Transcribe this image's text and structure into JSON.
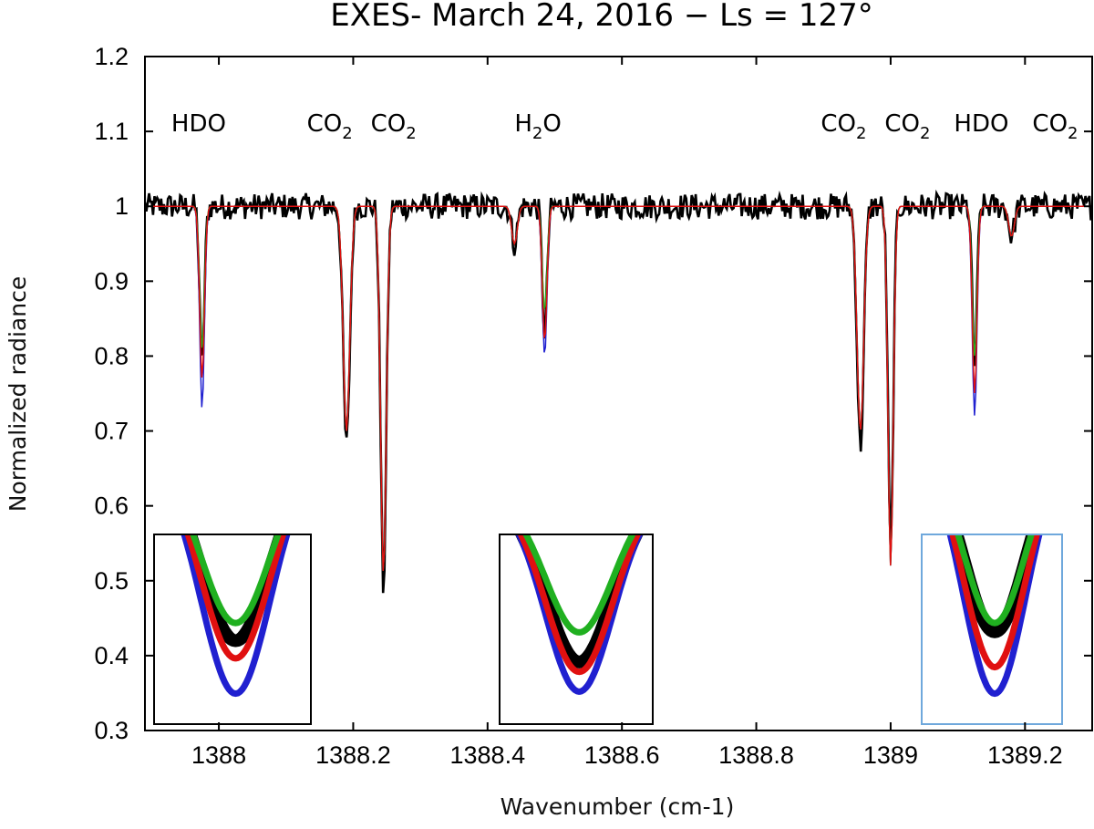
{
  "chart_data": {
    "type": "line",
    "title": "EXES- March 24, 2016 − Ls = 127°",
    "xlabel": "Wavenumber (cm-1)",
    "ylabel": "Normalized radiance",
    "xlim": [
      1387.89,
      1389.3
    ],
    "ylim": [
      0.3,
      1.2
    ],
    "xticks": [
      1388,
      1388.2,
      1388.4,
      1388.6,
      1388.8,
      1389,
      1389.2
    ],
    "xtick_labels": [
      "1388",
      "1388.2",
      "1388.4",
      "1388.6",
      "1388.8",
      "1389",
      "1389.2"
    ],
    "yticks": [
      0.3,
      0.4,
      0.5,
      0.6,
      0.7,
      0.8,
      0.9,
      1.0,
      1.1,
      1.2
    ],
    "ytick_labels": [
      "0.3",
      "0.4",
      "0.5",
      "0.6",
      "0.7",
      "0.8",
      "0.9",
      "1",
      "1.1",
      "1.2"
    ],
    "grid": false,
    "legend": "none",
    "baseline": 1.0,
    "annotations": [
      {
        "text": "HDO",
        "sub": "",
        "x": 1387.97
      },
      {
        "text": "CO",
        "sub": "2",
        "x": 1388.165
      },
      {
        "text": "CO",
        "sub": "2",
        "x": 1388.26
      },
      {
        "text": "H",
        "sub": "2",
        "tail": "O",
        "x": 1388.475
      },
      {
        "text": "CO",
        "sub": "2",
        "x": 1388.93
      },
      {
        "text": "CO",
        "sub": "2",
        "x": 1389.025
      },
      {
        "text": "HDO",
        "sub": "",
        "x": 1389.135
      },
      {
        "text": "CO",
        "sub": "2",
        "x": 1389.245
      }
    ],
    "absorption_lines": [
      {
        "x": 1387.975,
        "width": 0.005,
        "depth": {
          "observed": 0.21,
          "green": 0.19,
          "red": 0.23,
          "blue": 0.27
        }
      },
      {
        "x": 1388.19,
        "width": 0.007,
        "depth": {
          "observed": 0.32,
          "green": 0.3,
          "red": 0.3,
          "blue": 0.3
        }
      },
      {
        "x": 1388.245,
        "width": 0.006,
        "depth": {
          "observed": 0.51,
          "green": 0.49,
          "red": 0.49,
          "blue": 0.49
        }
      },
      {
        "x": 1388.44,
        "width": 0.006,
        "depth": {
          "observed": 0.05,
          "green": 0.05,
          "red": 0.05,
          "blue": 0.05
        }
      },
      {
        "x": 1388.485,
        "width": 0.005,
        "depth": {
          "observed": 0.17,
          "green": 0.14,
          "red": 0.18,
          "blue": 0.2
        }
      },
      {
        "x": 1388.955,
        "width": 0.007,
        "depth": {
          "observed": 0.32,
          "green": 0.3,
          "red": 0.3,
          "blue": 0.3
        }
      },
      {
        "x": 1389.0,
        "width": 0.0055,
        "depth": {
          "observed": 0.46,
          "green": 0.48,
          "red": 0.48,
          "blue": 0.48
        }
      },
      {
        "x": 1389.125,
        "width": 0.005,
        "depth": {
          "observed": 0.21,
          "green": 0.2,
          "red": 0.25,
          "blue": 0.28
        }
      },
      {
        "x": 1389.18,
        "width": 0.006,
        "depth": {
          "observed": 0.04,
          "green": 0.04,
          "red": 0.04,
          "blue": 0.04
        }
      }
    ],
    "series": [
      {
        "color": "#000000",
        "role": "observed spectrum"
      },
      {
        "color": "#2020d0",
        "role": "model"
      },
      {
        "color": "#20b020",
        "role": "model"
      },
      {
        "color": "#e01010",
        "role": "model"
      }
    ],
    "insets": [
      {
        "line_x": 1387.975,
        "border": "#000000"
      },
      {
        "line_x": 1388.485,
        "border": "#000000"
      },
      {
        "line_x": 1389.125,
        "border": "#6fa8dc"
      }
    ]
  }
}
